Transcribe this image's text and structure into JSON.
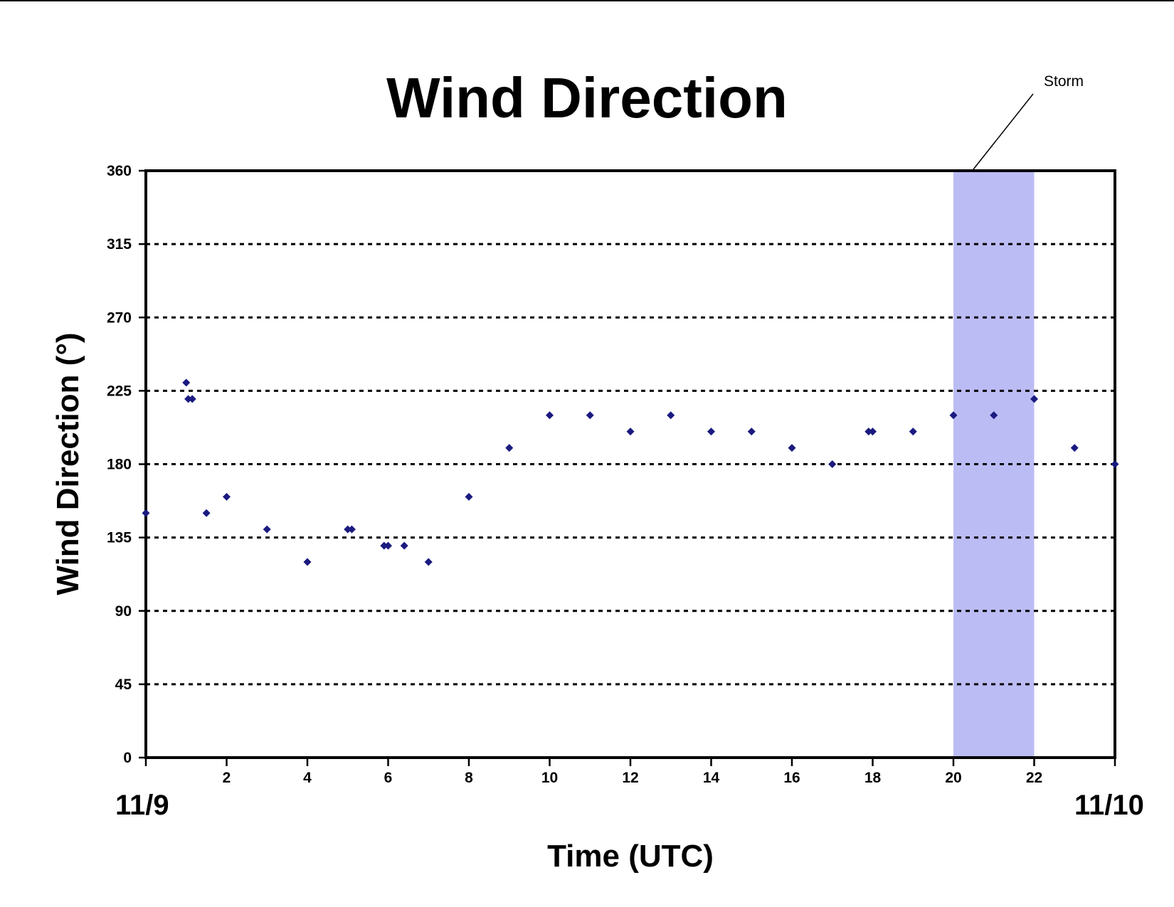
{
  "chart_data": {
    "type": "scatter",
    "title": "Wind Direction",
    "xlabel": "Time (UTC)",
    "ylabel": "Wind Direction (°)",
    "xlim": [
      0,
      24
    ],
    "ylim": [
      0,
      360
    ],
    "x_ticks": [
      0,
      2,
      4,
      6,
      8,
      10,
      12,
      14,
      16,
      18,
      20,
      22,
      24
    ],
    "x_tick_labels": [
      "",
      "2",
      "4",
      "6",
      "8",
      "10",
      "12",
      "14",
      "16",
      "18",
      "20",
      "22",
      ""
    ],
    "y_ticks": [
      0,
      45,
      90,
      135,
      180,
      225,
      270,
      315,
      360
    ],
    "y_tick_labels": [
      "0",
      "45",
      "90",
      "135",
      "180",
      "225",
      "270",
      "315",
      "360"
    ],
    "date_labels": {
      "start": "11/9",
      "end": "11/10"
    },
    "grid": "horizontal dotted",
    "marker_color": "#1a1a80",
    "shaded_region": {
      "x_start": 20,
      "x_end": 22,
      "color": "#bcbcf5",
      "label": "Storm"
    },
    "series": [
      {
        "x": [
          0,
          1,
          1.05,
          1.15,
          1.5,
          2,
          3,
          4,
          5,
          5.1,
          5.9,
          6,
          6.4,
          7,
          8,
          9,
          10,
          11,
          12,
          13,
          14,
          15,
          16,
          17,
          17.9,
          18,
          19,
          20,
          21,
          22,
          23,
          24
        ],
        "y": [
          150,
          230,
          220,
          220,
          150,
          160,
          140,
          120,
          140,
          140,
          130,
          130,
          130,
          120,
          160,
          190,
          210,
          210,
          200,
          210,
          200,
          200,
          190,
          180,
          200,
          200,
          200,
          210,
          210,
          220,
          190,
          180
        ]
      }
    ]
  }
}
